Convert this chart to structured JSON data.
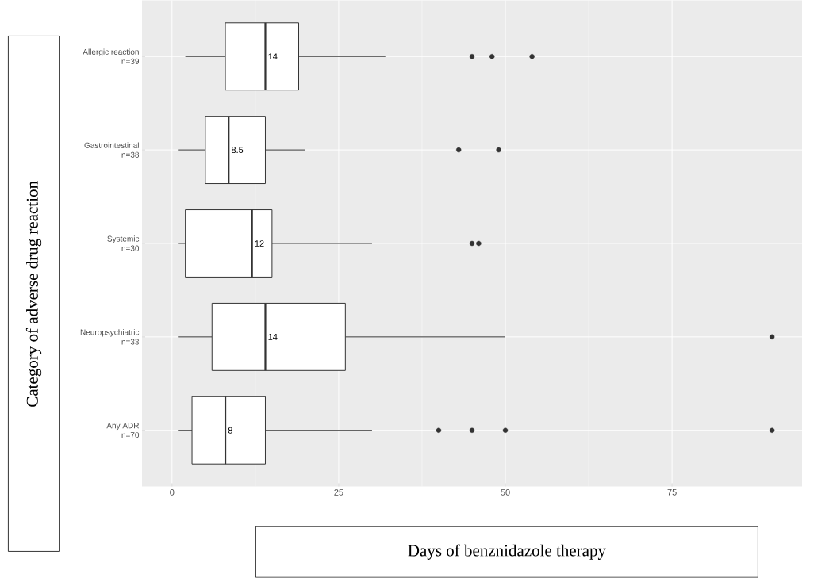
{
  "chart_data": {
    "type": "box",
    "orientation": "horizontal",
    "xlabel": "Days of benznidazole therapy",
    "ylabel": "Category of adverse drug reaction",
    "categories": [
      "Allergic reaction\nn=39",
      "Gastrointestinal\nn=38",
      "Systemic\nn=30",
      "Neuropsychiatric\nn=33",
      "Any ADR\nn=70"
    ],
    "boxes": [
      {
        "low": 2,
        "q1": 8,
        "median": 14,
        "q3": 19,
        "high": 32,
        "outliers": [
          45,
          48,
          54
        ]
      },
      {
        "low": 1,
        "q1": 5,
        "median": 8.5,
        "q3": 14,
        "high": 20,
        "outliers": [
          43,
          49
        ]
      },
      {
        "low": 1,
        "q1": 2,
        "median": 12,
        "q3": 15,
        "high": 30,
        "outliers": [
          45,
          46
        ]
      },
      {
        "low": 1,
        "q1": 6,
        "median": 14,
        "q3": 26,
        "high": 50,
        "outliers": [
          90
        ]
      },
      {
        "low": 1,
        "q1": 3,
        "median": 8,
        "q3": 14,
        "high": 30,
        "outliers": [
          40,
          45,
          50,
          90
        ]
      }
    ],
    "annotations": [
      {
        "text": "14",
        "x": 14,
        "y": "Allergic reaction\nn=39"
      },
      {
        "text": "8.5",
        "x": 8.5,
        "y": "Gastrointestinal\nn=38"
      },
      {
        "text": "12",
        "x": 12,
        "y": "Systemic\nn=30"
      },
      {
        "text": "14",
        "x": 14,
        "y": "Neuropsychiatric\nn=33"
      },
      {
        "text": "8",
        "x": 8,
        "y": "Any ADR\nn=70"
      }
    ],
    "xlim": [
      -4.5,
      94.5
    ],
    "xticks": [
      0,
      25,
      50,
      75
    ],
    "grid": true,
    "color": "#ffffff"
  }
}
